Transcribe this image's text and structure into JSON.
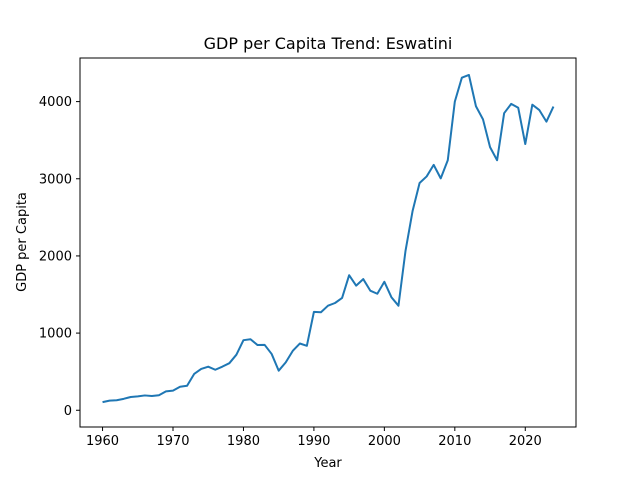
{
  "chart_data": {
    "type": "line",
    "title": "GDP per Capita Trend: Eswatini",
    "xlabel": "Year",
    "ylabel": "GDP per Capita",
    "xlim": [
      1956.8,
      2027.2
    ],
    "ylim": [
      -217,
      4565
    ],
    "xticks": [
      1960,
      1970,
      1980,
      1990,
      2000,
      2010,
      2020
    ],
    "yticks": [
      0,
      1000,
      2000,
      3000,
      4000
    ],
    "grid": false,
    "legend": "none",
    "line_color": "#1f77b4",
    "series": [
      {
        "x": [
          1960,
          1961,
          1962,
          1963,
          1964,
          1965,
          1966,
          1967,
          1968,
          1969,
          1970,
          1971,
          1972,
          1973,
          1974,
          1975,
          1976,
          1977,
          1978,
          1979,
          1980,
          1981,
          1982,
          1983,
          1984,
          1985,
          1986,
          1987,
          1988,
          1989,
          1990,
          1991,
          1992,
          1993,
          1994,
          1995,
          1996,
          1997,
          1998,
          1999,
          2000,
          2001,
          2002,
          2003,
          2004,
          2005,
          2006,
          2007,
          2008,
          2009,
          2010,
          2011,
          2012,
          2013,
          2014,
          2015,
          2016,
          2017,
          2018,
          2019,
          2020,
          2021,
          2022,
          2023,
          2024
        ],
        "values": [
          105,
          125,
          130,
          148,
          172,
          180,
          192,
          185,
          195,
          245,
          255,
          305,
          318,
          470,
          535,
          565,
          525,
          565,
          610,
          720,
          908,
          920,
          845,
          848,
          730,
          513,
          620,
          770,
          865,
          835,
          1275,
          1270,
          1355,
          1390,
          1455,
          1750,
          1615,
          1700,
          1550,
          1510,
          1665,
          1465,
          1355,
          2065,
          2580,
          2945,
          3030,
          3180,
          3005,
          3240,
          4000,
          4310,
          4345,
          3940,
          3770,
          3410,
          3240,
          3850,
          3970,
          3920,
          3450,
          3960,
          3890,
          3740,
          3935
        ]
      }
    ]
  }
}
